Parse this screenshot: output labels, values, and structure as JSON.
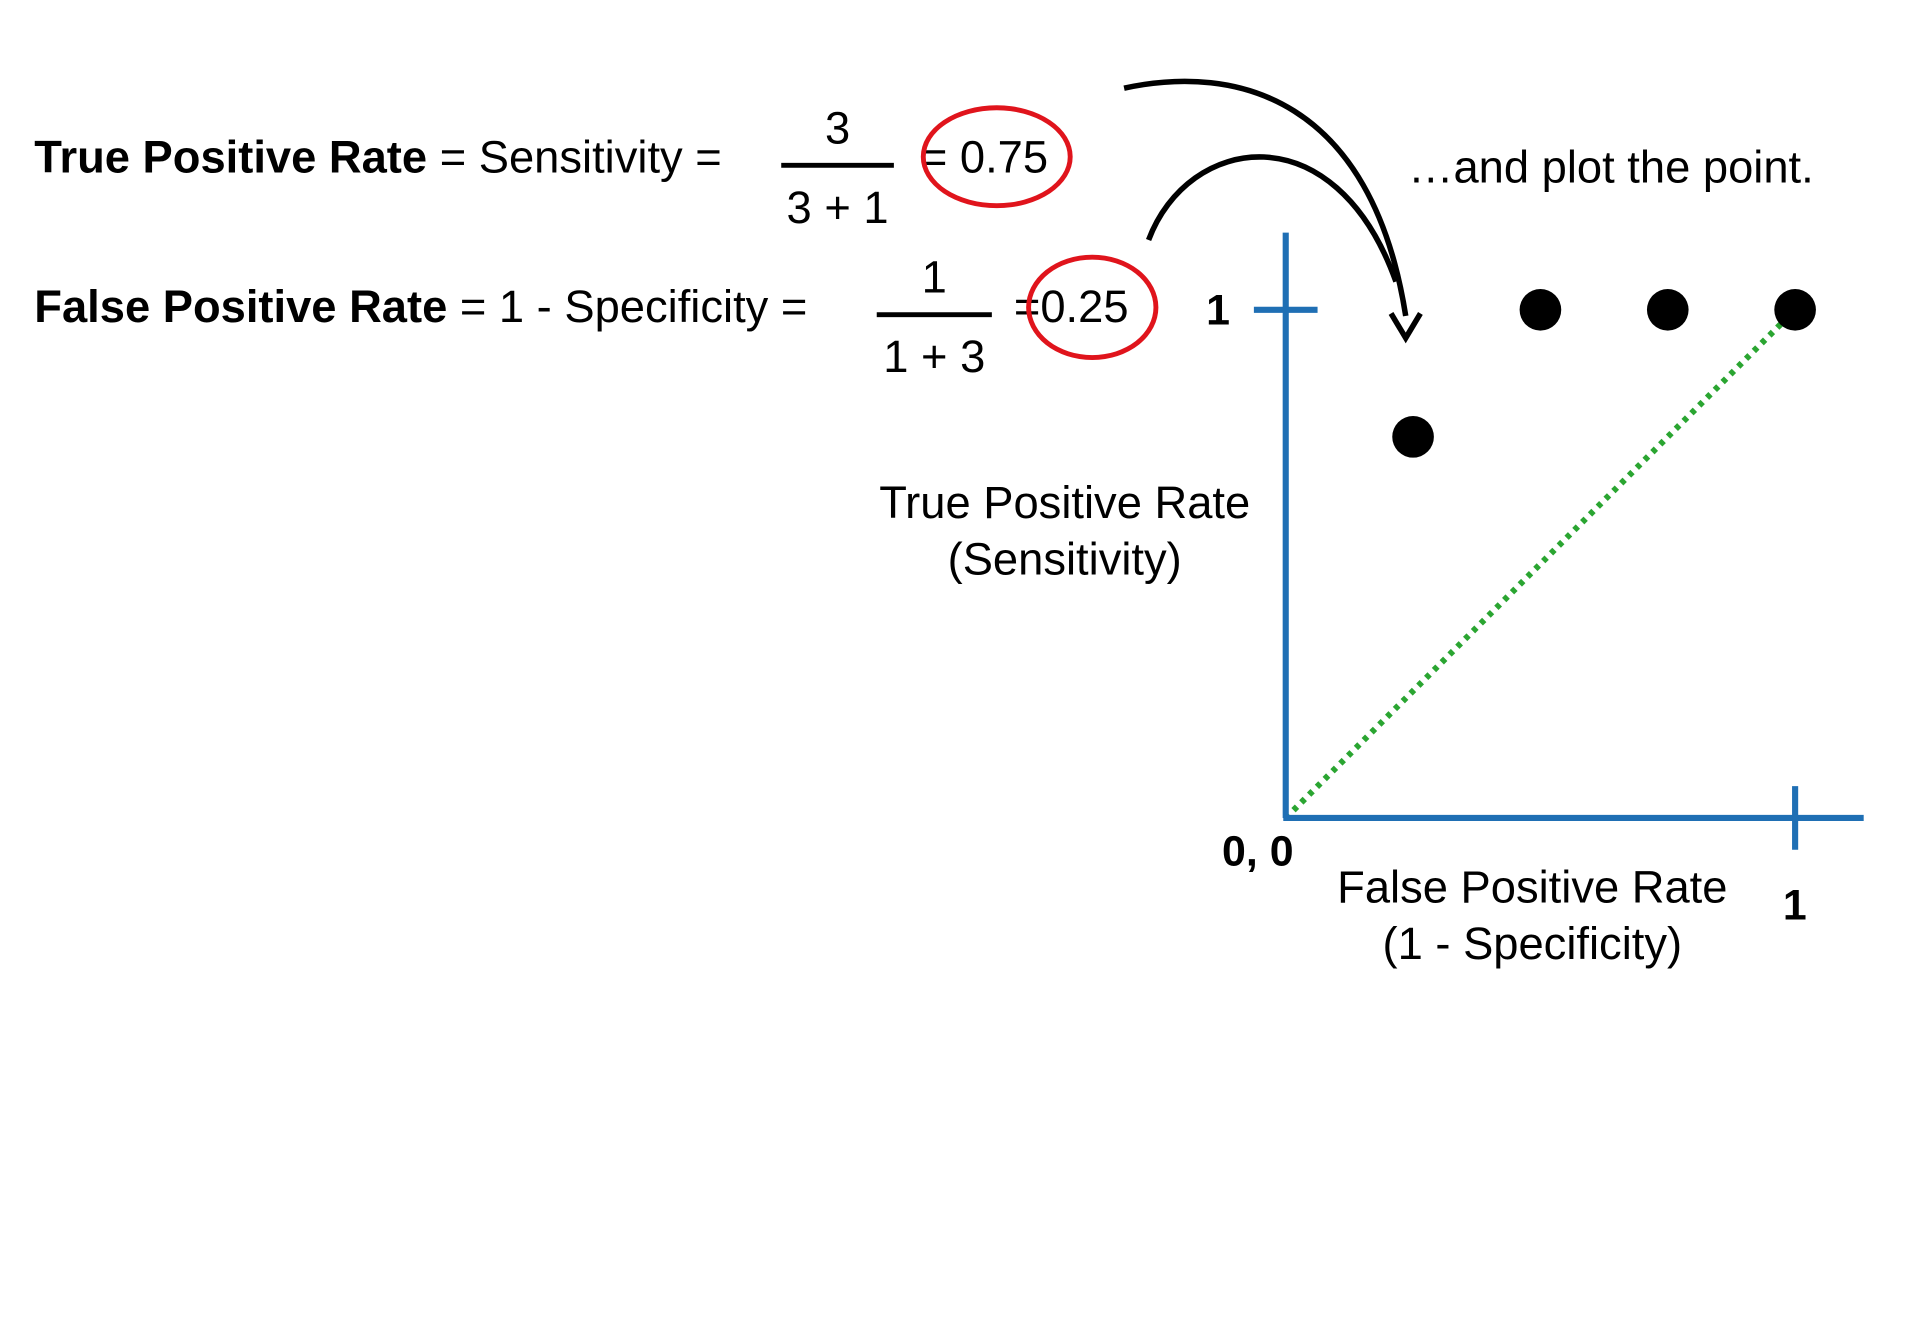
{
  "equations": {
    "tpr": {
      "label": "True Positive Rate",
      "middle": " = Sensitivity = ",
      "numerator": "3",
      "denominator": "3 + 1",
      "equals": "=",
      "result": "0.75"
    },
    "fpr": {
      "label": "False Positive Rate",
      "middle": " = 1 - Specificity = ",
      "numerator": "1",
      "denominator": "1 + 3",
      "equals": "=",
      "result": "0.25"
    }
  },
  "note": "…and plot the point.",
  "chart_data": {
    "type": "scatter",
    "title": "",
    "ylabel_line1": "True Positive Rate",
    "ylabel_line2": "(Sensitivity)",
    "xlabel_line1": "False Positive Rate",
    "xlabel_line2": "(1 - Specificity)",
    "origin_label": "0, 0",
    "x_tick_label": "1",
    "y_tick_label": "1",
    "xlim": [
      0,
      1
    ],
    "ylim": [
      0,
      1
    ],
    "points": [
      {
        "x": 0.25,
        "y": 0.75
      },
      {
        "x": 0.5,
        "y": 1
      },
      {
        "x": 0.75,
        "y": 1
      },
      {
        "x": 1,
        "y": 1
      }
    ],
    "reference_line": {
      "from": [
        0,
        0
      ],
      "to": [
        1,
        1
      ],
      "style": "dotted"
    },
    "colors": {
      "axis": "#1f6fb4",
      "reference": "#2aa531",
      "point": "#000000",
      "highlight": "#e0141c"
    }
  }
}
